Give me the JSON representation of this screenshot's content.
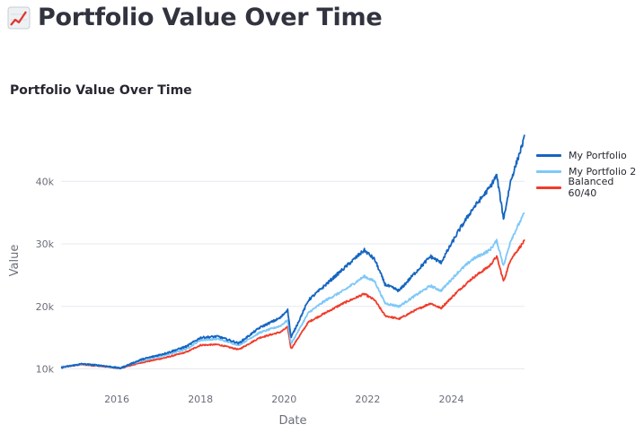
{
  "page": {
    "title": "Portfolio Value Over Time",
    "icon": "chart-increasing-icon"
  },
  "chart_data": {
    "type": "line",
    "title": "Portfolio Value Over Time",
    "xlabel": "Date",
    "ylabel": "Value",
    "x_ticks": [
      "2016",
      "2018",
      "2020",
      "2022",
      "2024"
    ],
    "y_ticks": [
      "10k",
      "20k",
      "30k",
      "40k"
    ],
    "x_range": [
      "2014-09",
      "2025-10"
    ],
    "y_range": [
      9500,
      47500
    ],
    "grid": "horizontal",
    "legend_position": "top-right",
    "series": [
      {
        "name": "My Portfolio",
        "color": "#1565c0",
        "points": [
          [
            "2014-09",
            10200
          ],
          [
            "2015-03",
            10800
          ],
          [
            "2015-09",
            10500
          ],
          [
            "2016-02",
            10100
          ],
          [
            "2016-08",
            11500
          ],
          [
            "2017-03",
            12500
          ],
          [
            "2017-09",
            13600
          ],
          [
            "2018-01",
            15000
          ],
          [
            "2018-06",
            15200
          ],
          [
            "2018-12",
            14100
          ],
          [
            "2019-06",
            16600
          ],
          [
            "2019-12",
            18200
          ],
          [
            "2020-02",
            19500
          ],
          [
            "2020-03",
            15000
          ],
          [
            "2020-08",
            21000
          ],
          [
            "2021-01",
            23500
          ],
          [
            "2021-06",
            26000
          ],
          [
            "2021-12",
            29000
          ],
          [
            "2022-03",
            27500
          ],
          [
            "2022-06",
            23500
          ],
          [
            "2022-10",
            22500
          ],
          [
            "2023-02",
            25000
          ],
          [
            "2023-07",
            28000
          ],
          [
            "2023-10",
            27000
          ],
          [
            "2024-03",
            32000
          ],
          [
            "2024-07",
            35500
          ],
          [
            "2024-12",
            39000
          ],
          [
            "2025-02",
            41000
          ],
          [
            "2025-04",
            34000
          ],
          [
            "2025-06",
            40000
          ],
          [
            "2025-10",
            47000
          ]
        ]
      },
      {
        "name": "My Portfolio 2",
        "color": "#7ec8f8",
        "points": [
          [
            "2014-09",
            10300
          ],
          [
            "2015-03",
            10800
          ],
          [
            "2015-09",
            10500
          ],
          [
            "2016-02",
            10200
          ],
          [
            "2016-08",
            11300
          ],
          [
            "2017-03",
            12200
          ],
          [
            "2017-09",
            13200
          ],
          [
            "2018-01",
            14600
          ],
          [
            "2018-06",
            14800
          ],
          [
            "2018-12",
            13800
          ],
          [
            "2019-06",
            15800
          ],
          [
            "2019-12",
            16900
          ],
          [
            "2020-02",
            17800
          ],
          [
            "2020-03",
            14000
          ],
          [
            "2020-08",
            19000
          ],
          [
            "2021-01",
            21000
          ],
          [
            "2021-06",
            22500
          ],
          [
            "2021-12",
            24800
          ],
          [
            "2022-03",
            24000
          ],
          [
            "2022-06",
            20500
          ],
          [
            "2022-10",
            20000
          ],
          [
            "2023-02",
            21500
          ],
          [
            "2023-07",
            23300
          ],
          [
            "2023-10",
            22500
          ],
          [
            "2024-03",
            25500
          ],
          [
            "2024-07",
            27500
          ],
          [
            "2024-12",
            29000
          ],
          [
            "2025-02",
            30500
          ],
          [
            "2025-04",
            26500
          ],
          [
            "2025-06",
            30500
          ],
          [
            "2025-10",
            35000
          ]
        ]
      },
      {
        "name": "Balanced 60/40",
        "color": "#f03c2a",
        "points": [
          [
            "2014-09",
            10300
          ],
          [
            "2015-03",
            10700
          ],
          [
            "2015-09",
            10400
          ],
          [
            "2016-02",
            10100
          ],
          [
            "2016-08",
            11000
          ],
          [
            "2017-03",
            11800
          ],
          [
            "2017-09",
            12700
          ],
          [
            "2018-01",
            13800
          ],
          [
            "2018-06",
            13900
          ],
          [
            "2018-12",
            13100
          ],
          [
            "2019-06",
            15000
          ],
          [
            "2019-12",
            15900
          ],
          [
            "2020-02",
            16700
          ],
          [
            "2020-03",
            13200
          ],
          [
            "2020-08",
            17500
          ],
          [
            "2021-01",
            19000
          ],
          [
            "2021-06",
            20500
          ],
          [
            "2021-12",
            22000
          ],
          [
            "2022-03",
            21000
          ],
          [
            "2022-06",
            18500
          ],
          [
            "2022-10",
            18000
          ],
          [
            "2023-02",
            19200
          ],
          [
            "2023-07",
            20500
          ],
          [
            "2023-10",
            19700
          ],
          [
            "2024-03",
            22500
          ],
          [
            "2024-07",
            24500
          ],
          [
            "2024-12",
            26500
          ],
          [
            "2025-02",
            28000
          ],
          [
            "2025-04",
            24000
          ],
          [
            "2025-06",
            27500
          ],
          [
            "2025-10",
            30500
          ]
        ]
      }
    ]
  }
}
